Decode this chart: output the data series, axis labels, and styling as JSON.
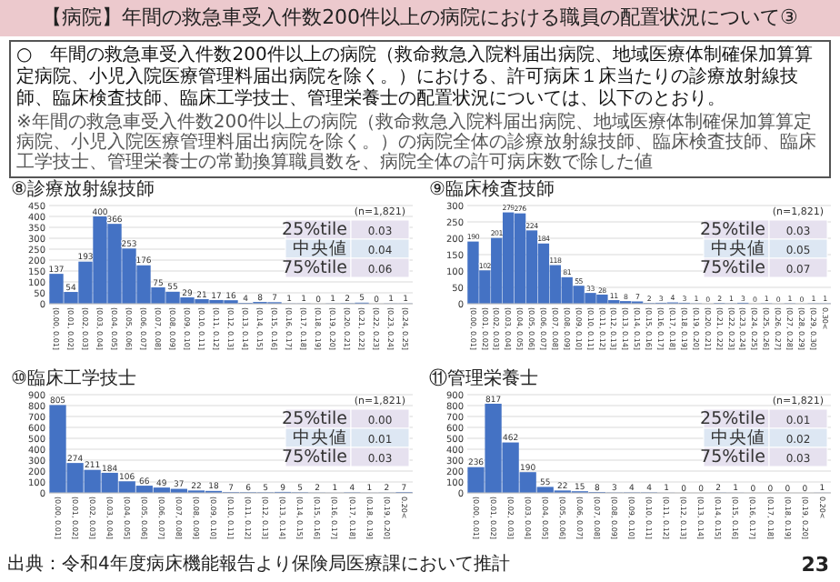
{
  "chart_data": [
    {
      "type": "other",
      "title": "【病院】年間の救急車受入件数200件以上の病院における職員の配置状況について③",
      "subtitle": "○　年間の救急車受入件数200件以上の病院（救命救急入院料届出病院、地域医療体制確保加算算定病院、小児入院医療管理料届出病院を除く。）における、許可病床１床当たりの診療放射線技師、臨床検査技師、臨床工学技士、管理栄養士の配置状況については、以下のとおり。",
      "annotations": [
        "※年間の救急車受入件数200件以上の病院（救命救急入院料届出病院、地域医療体制確保加算算定病院、小児入院医療管理料届出病院を除く。）の病院全体の診療放射線技師、臨床検査技師、臨床工学技士、管理栄養士の常勤換算職員数を、病院全体の許可病床数で除した値",
        "出典：令和4年度病床機能報告より保険局医療課において推計",
        "23"
      ]
    },
    {
      "type": "bar",
      "title": "⑧診療放射線技師",
      "color": "#4472c4",
      "grid": "y",
      "data_labels": true,
      "ylim": [
        0,
        450
      ],
      "yticks": [
        0,
        50,
        100,
        150,
        200,
        250,
        300,
        350,
        400,
        450
      ],
      "categories": [
        "(0.00, 0.01]",
        "(0.01, 0.02]",
        "(0.02, 0.03]",
        "(0.03, 0.04]",
        "(0.04, 0.05]",
        "(0.05, 0.06]",
        "(0.06, 0.07]",
        "(0.07, 0.08]",
        "(0.08, 0.09]",
        "(0.09, 0.10]",
        "(0.10, 0.11]",
        "(0.11, 0.12]",
        "(0.12, 0.13]",
        "(0.13, 0.14]",
        "(0.14, 0.15]",
        "(0.15, 0.16]",
        "(0.16, 0.17]",
        "(0.17, 0.18]",
        "(0.18, 0.19]",
        "(0.19, 0.20]",
        "(0.20, 0.21]",
        "(0.21, 0.22]",
        "(0.22, 0.23]",
        "(0.23, 0.24]",
        "(0.24, 0.25]"
      ],
      "values": [
        137,
        54,
        193,
        400,
        366,
        253,
        176,
        75,
        55,
        29,
        21,
        17,
        16,
        4,
        8,
        7,
        1,
        1,
        0,
        1,
        2,
        5,
        0,
        1,
        1
      ],
      "annotations": [
        "(n=1,821)",
        "25%tile",
        "0.03",
        "中央値",
        "0.04",
        "75%tile",
        "0.06"
      ]
    },
    {
      "type": "bar",
      "title": "⑨臨床検査技師",
      "color": "#4472c4",
      "grid": "y",
      "data_labels": true,
      "ylim": [
        0,
        300
      ],
      "yticks": [
        0,
        50,
        100,
        150,
        200,
        250,
        300
      ],
      "categories": [
        "(0.00, 0.01]",
        "(0.01, 0.02]",
        "(0.02, 0.03]",
        "(0.03, 0.04]",
        "(0.04, 0.05]",
        "(0.05, 0.06]",
        "(0.06, 0.07]",
        "(0.07, 0.08]",
        "(0.08, 0.09]",
        "(0.09, 0.10]",
        "(0.10, 0.11]",
        "(0.11, 0.12]",
        "(0.12, 0.13]",
        "(0.13, 0.14]",
        "(0.14, 0.15]",
        "(0.15, 0.16]",
        "(0.16, 0.17]",
        "(0.17, 0.18]",
        "(0.18, 0.19]",
        "(0.19, 0.20]",
        "(0.20, 0.21]",
        "(0.21, 0.22]",
        "(0.22, 0.23]",
        "(0.23, 0.24]",
        "(0.24, 0.25]",
        "(0.25, 0.26]",
        "(0.26, 0.27]",
        "(0.27, 0.28]",
        "(0.28, 0.29]",
        "(0.29, 0.30]",
        "0.30<"
      ],
      "values": [
        190,
        102,
        201,
        279,
        276,
        224,
        184,
        118,
        81,
        55,
        33,
        28,
        11,
        8,
        7,
        2,
        3,
        4,
        3,
        1,
        0,
        2,
        1,
        3,
        0,
        1,
        0,
        1,
        0,
        1,
        1
      ],
      "annotations": [
        "(n=1,821)",
        "25%tile",
        "0.03",
        "中央値",
        "0.05",
        "75%tile",
        "0.07"
      ]
    },
    {
      "type": "bar",
      "title": "⑩臨床工学技士",
      "color": "#4472c4",
      "grid": "y",
      "data_labels": true,
      "ylim": [
        0,
        900
      ],
      "yticks": [
        0,
        100,
        200,
        300,
        400,
        500,
        600,
        700,
        800,
        900
      ],
      "categories": [
        "(0.00, 0.01]",
        "(0.01, 0.02]",
        "(0.02, 0.03]",
        "(0.03, 0.04]",
        "(0.04, 0.05]",
        "(0.05, 0.06]",
        "(0.06, 0.07]",
        "(0.07, 0.08]",
        "(0.08, 0.09]",
        "(0.09, 0.10]",
        "(0.10, 0.11]",
        "(0.11, 0.12]",
        "(0.12, 0.13]",
        "(0.13, 0.14]",
        "(0.14, 0.15]",
        "(0.15, 0.16]",
        "(0.16, 0.17]",
        "(0.17, 0.18]",
        "(0.18, 0.19]",
        "(0.19, 0.20]",
        "0.20<"
      ],
      "values": [
        805,
        274,
        211,
        184,
        106,
        66,
        49,
        37,
        22,
        18,
        7,
        6,
        5,
        9,
        5,
        2,
        1,
        4,
        1,
        2,
        7
      ],
      "annotations": [
        "(n=1,821)",
        "25%tile",
        "0.00",
        "中央値",
        "0.01",
        "75%tile",
        "0.03"
      ]
    },
    {
      "type": "bar",
      "title": "⑪管理栄養士",
      "color": "#4472c4",
      "grid": "y",
      "data_labels": true,
      "ylim": [
        0,
        900
      ],
      "yticks": [
        0,
        100,
        200,
        300,
        400,
        500,
        600,
        700,
        800,
        900
      ],
      "categories": [
        "(0.00, 0.01]",
        "(0.01, 0.02]",
        "(0.02, 0.03]",
        "(0.03, 0.04]",
        "(0.04, 0.05]",
        "(0.05, 0.06]",
        "(0.06, 0.07]",
        "(0.07, 0.08]",
        "(0.08, 0.09]",
        "(0.09, 0.10]",
        "(0.10, 0.11]",
        "(0.11, 0.12]",
        "(0.12, 0.13]",
        "(0.13, 0.14]",
        "(0.14, 0.15]",
        "(0.15, 0.16]",
        "(0.16, 0.17]",
        "(0.17, 0.18]",
        "(0.18, 0.19]",
        "(0.19, 0.20]",
        "0.20<"
      ],
      "values": [
        236,
        817,
        462,
        190,
        55,
        22,
        15,
        8,
        3,
        4,
        4,
        1,
        0,
        0,
        2,
        1,
        0,
        0,
        0,
        0,
        1
      ],
      "annotations": [
        "(n=1,821)",
        "25%tile",
        "0.01",
        "中央値",
        "0.02",
        "75%tile",
        "0.03"
      ]
    }
  ]
}
